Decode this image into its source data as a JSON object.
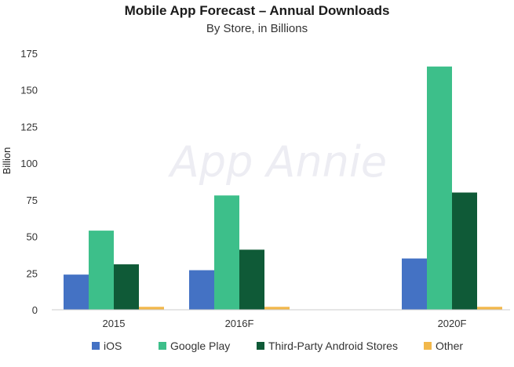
{
  "chart_data": {
    "type": "bar",
    "title": "Mobile App Forecast – Annual Downloads",
    "subtitle": "By Store, in Billions",
    "ylabel": "Billion",
    "xlabel": "",
    "watermark": "App Annie",
    "ylim": [
      0,
      175
    ],
    "yticks": [
      0,
      25,
      50,
      75,
      100,
      125,
      150,
      175
    ],
    "grid": false,
    "legend_position": "bottom",
    "categories": [
      "2015",
      "2016F",
      "2020F"
    ],
    "series": [
      {
        "name": "iOS",
        "color": "#4472c4",
        "values": [
          24,
          27,
          35
        ]
      },
      {
        "name": "Google Play",
        "color": "#3dbf8a",
        "values": [
          54,
          78,
          166
        ]
      },
      {
        "name": "Third-Party Android Stores",
        "color": "#0f5a37",
        "values": [
          31,
          41,
          80
        ]
      },
      {
        "name": "Other",
        "color": "#f2b84b",
        "values": [
          2,
          2,
          2
        ]
      }
    ]
  }
}
